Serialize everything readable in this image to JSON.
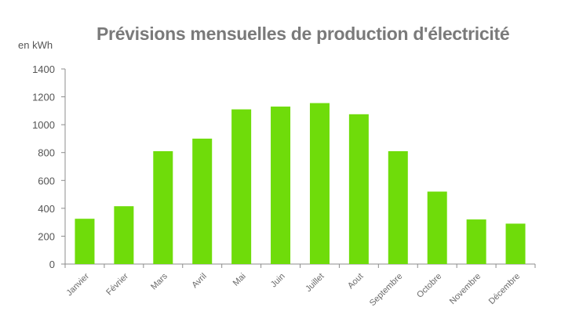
{
  "chart_data": {
    "type": "bar",
    "title": "Prévisions mensuelles de production d'électricité",
    "ylabel": "en kWh",
    "xlabel": "",
    "categories": [
      "Janvier",
      "Février",
      "Mars",
      "Avril",
      "Mai",
      "Juin",
      "Juillet",
      "Aout",
      "Septembre",
      "Octobre",
      "Novembre",
      "Décembre"
    ],
    "values": [
      325,
      415,
      810,
      900,
      1110,
      1130,
      1155,
      1075,
      810,
      520,
      320,
      290
    ],
    "ylim": [
      0,
      1400
    ],
    "yticks": [
      0,
      200,
      400,
      600,
      800,
      1000,
      1200,
      1400
    ],
    "grid": false,
    "bar_color": "#6fdc0a",
    "axis_color": "#8c8c8c"
  }
}
